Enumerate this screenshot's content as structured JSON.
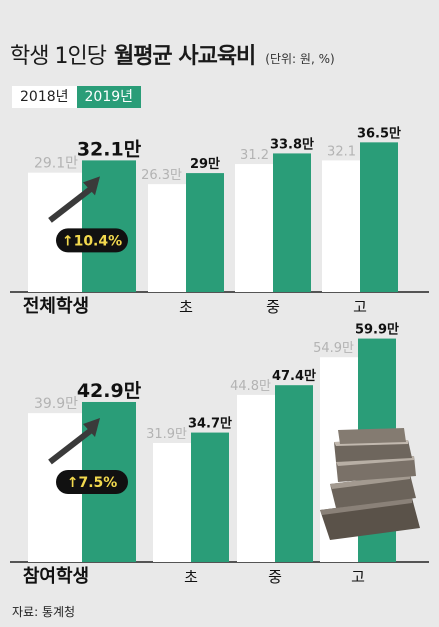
{
  "title": {
    "part1": "학생 1인당",
    "part2": "월평균 사교육비",
    "unit": "(단위: 원, %)"
  },
  "legend": {
    "y2018": "2018년",
    "y2019": "2019년"
  },
  "colors": {
    "y2018": "#ffffff",
    "y2019": "#2a9d78",
    "old_label": "#b3b3b3",
    "badge_bg": "#111111",
    "badge_text": "#f2d94e",
    "baseline": "#222222"
  },
  "source": "자료: 통계청",
  "chart_data": [
    {
      "type": "bar",
      "title": "전체학생",
      "categories": [
        "전체학생",
        "초",
        "중",
        "고"
      ],
      "series": [
        {
          "name": "2018년",
          "values": [
            29.1,
            26.3,
            31.2,
            32.1
          ],
          "labels": [
            "29.1만",
            "26.3만",
            "31.2",
            "32.1"
          ]
        },
        {
          "name": "2019년",
          "values": [
            32.1,
            29.0,
            33.8,
            36.5
          ],
          "labels": [
            "32.1만",
            "29만",
            "33.8만",
            "36.5만"
          ]
        }
      ],
      "annotation": "↑10.4%"
    },
    {
      "type": "bar",
      "title": "참여학생",
      "categories": [
        "참여학생",
        "초",
        "중",
        "고"
      ],
      "series": [
        {
          "name": "2018년",
          "values": [
            39.9,
            31.9,
            44.8,
            54.9
          ],
          "labels": [
            "39.9만",
            "31.9만",
            "44.8만",
            "54.9만"
          ]
        },
        {
          "name": "2019년",
          "values": [
            42.9,
            34.7,
            47.4,
            59.9
          ],
          "labels": [
            "42.9만",
            "34.7만",
            "47.4만",
            "59.9만"
          ]
        }
      ],
      "annotation": "↑7.5%"
    }
  ]
}
